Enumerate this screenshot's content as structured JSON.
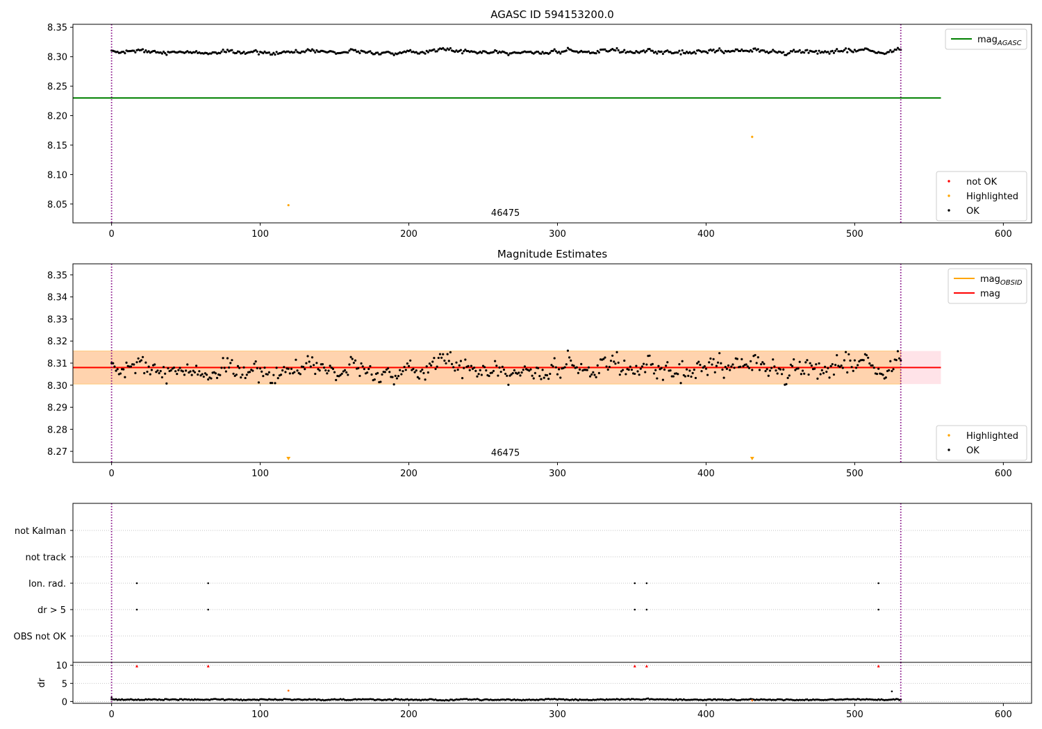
{
  "chart_data": [
    {
      "type": "scatter",
      "title": "AGASC ID 594153200.0",
      "xlim": [
        -26,
        619
      ],
      "ylim": [
        8.018,
        8.355
      ],
      "xticks": [
        0,
        100,
        200,
        300,
        400,
        500,
        600
      ],
      "yticks": [
        8.05,
        8.1,
        8.15,
        8.2,
        8.25,
        8.3,
        8.35
      ],
      "ytick_labels": [
        "8.05",
        "8.10",
        "8.15",
        "8.20",
        "8.25",
        "8.30",
        "8.35"
      ],
      "obsid_label": {
        "text": "46475",
        "x": 265,
        "y": 8.03
      },
      "vlines": [
        0,
        531
      ],
      "hline": {
        "name": "mag_AGASC",
        "y": 8.23,
        "x0": -26,
        "x1": 558,
        "color": "#008000"
      },
      "ok_series": {
        "name": "OK",
        "n": 531,
        "mean": 8.309,
        "amp": 0.006,
        "noise": 0.004
      },
      "highlighted": [
        {
          "x": 119,
          "y": 8.048
        },
        {
          "x": 431,
          "y": 8.164
        }
      ],
      "legend_lines": [
        {
          "label": "mag",
          "sub": "AGASC",
          "color": "#008000"
        }
      ],
      "legend_points": [
        {
          "label": "not OK",
          "color": "#ff0000"
        },
        {
          "label": "Highlighted",
          "color": "#ffa500"
        },
        {
          "label": "OK",
          "color": "#000000"
        }
      ]
    },
    {
      "type": "scatter",
      "title": "Magnitude Estimates",
      "xlim": [
        -26,
        619
      ],
      "ylim": [
        8.265,
        8.355
      ],
      "xticks": [
        0,
        100,
        200,
        300,
        400,
        500,
        600
      ],
      "yticks": [
        8.27,
        8.28,
        8.29,
        8.3,
        8.31,
        8.32,
        8.33,
        8.34,
        8.35
      ],
      "ytick_labels": [
        "8.27",
        "8.28",
        "8.29",
        "8.30",
        "8.31",
        "8.32",
        "8.33",
        "8.34",
        "8.35"
      ],
      "obsid_label": {
        "text": "46475",
        "x": 265,
        "y": 8.268
      },
      "vlines": [
        0,
        531
      ],
      "mag": {
        "name": "mag",
        "y": 8.308,
        "x0": -26,
        "x1": 558,
        "color": "#ff0000"
      },
      "band_outer": {
        "y0": 8.3005,
        "y1": 8.3155,
        "color": "#ffc0cb"
      },
      "band_inner": {
        "y0": 8.3005,
        "y1": 8.3155,
        "x0": -26,
        "x1": 531,
        "color": "#ffa500"
      },
      "ok_series": {
        "name": "OK",
        "n": 531,
        "mean": 8.308,
        "amp": 0.007,
        "noise": 0.006
      },
      "highlighted_markers": [
        {
          "x": 119,
          "y": 8.2655
        },
        {
          "x": 431,
          "y": 8.2655
        }
      ],
      "legend_lines": [
        {
          "label": "mag",
          "sub": "OBSID",
          "color": "#ffa500"
        },
        {
          "label": "mag",
          "sub": "",
          "color": "#ff0000"
        }
      ],
      "legend_points": [
        {
          "label": "Highlighted",
          "color": "#ffa500"
        },
        {
          "label": "OK",
          "color": "#000000"
        }
      ]
    },
    {
      "type": "scatter",
      "xlim": [
        -26,
        619
      ],
      "categories": [
        "not Kalman",
        "not track",
        "Ion. rad.",
        "dr > 5",
        "OBS not OK"
      ],
      "vlines": [
        0,
        531
      ],
      "flags": {
        "Ion. rad.": [
          17,
          65,
          352,
          360,
          516
        ],
        "dr > 5": [
          17,
          65,
          352,
          360,
          516
        ]
      }
    },
    {
      "type": "scatter",
      "ylabel": "dr",
      "xlim": [
        -26,
        619
      ],
      "ylim": [
        -0.5,
        10.8
      ],
      "xticks": [
        0,
        100,
        200,
        300,
        400,
        500,
        600
      ],
      "yticks": [
        0,
        5,
        10
      ],
      "ytick_labels": [
        "0",
        "5",
        "10"
      ],
      "vlines": [
        0,
        531
      ],
      "dr_series": {
        "n": 531,
        "mean": 0.4,
        "amp": 0.3
      },
      "red_markers": [
        {
          "x": 17,
          "y": 9.8
        },
        {
          "x": 65,
          "y": 9.8
        },
        {
          "x": 352,
          "y": 9.8
        },
        {
          "x": 360,
          "y": 9.8
        },
        {
          "x": 516,
          "y": 9.8
        }
      ],
      "orange_markers": [
        {
          "x": 119,
          "y": 3.0
        },
        {
          "x": 431,
          "y": 0.3
        }
      ],
      "extra_points": [
        {
          "x": 0,
          "y": 1.1
        },
        {
          "x": 525,
          "y": 2.8
        }
      ]
    }
  ]
}
